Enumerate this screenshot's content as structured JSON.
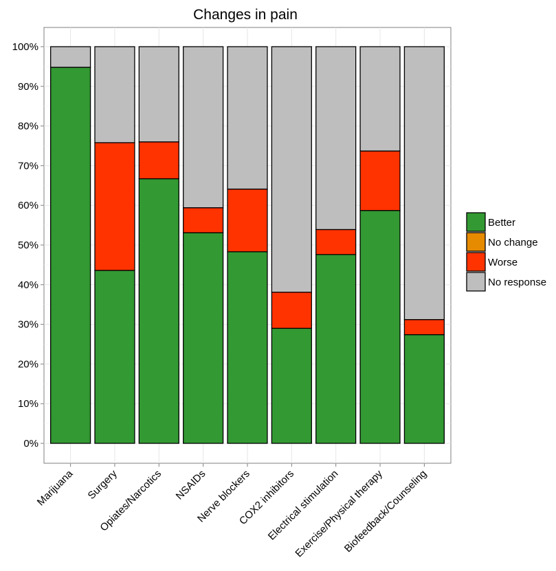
{
  "chart_data": {
    "type": "bar",
    "stacked": true,
    "title": "Changes in pain",
    "xlabel": "",
    "ylabel": "",
    "ylim": [
      0,
      100
    ],
    "y_ticks": [
      "0%",
      "10%",
      "20%",
      "30%",
      "40%",
      "50%",
      "60%",
      "70%",
      "80%",
      "90%",
      "100%"
    ],
    "grid": true,
    "legend_position": "right",
    "categories": [
      "Marijuana",
      "Surgery",
      "Opiates/Narcotics",
      "NSAIDs",
      "Nerve blockers",
      "COX2 inhibitors",
      "Electrical stimulation",
      "Exercise/Physical therapy",
      "Biofeedback/Counseling"
    ],
    "series": [
      {
        "name": "Better",
        "color": "#339933",
        "values": [
          94.8,
          43.6,
          66.7,
          53.1,
          48.3,
          29.0,
          47.6,
          58.7,
          27.4
        ]
      },
      {
        "name": "No change",
        "color": "#e68a00",
        "values": [
          0,
          0,
          0,
          0,
          0,
          0,
          0,
          0,
          0
        ]
      },
      {
        "name": "Worse",
        "color": "#ff3300",
        "values": [
          0,
          32.2,
          9.3,
          6.3,
          15.8,
          9.1,
          6.3,
          15.0,
          3.8
        ]
      },
      {
        "name": "No response",
        "color": "#bebebe",
        "values": [
          5.2,
          24.2,
          24.0,
          40.6,
          35.9,
          61.9,
          46.1,
          26.3,
          68.8
        ]
      }
    ]
  }
}
